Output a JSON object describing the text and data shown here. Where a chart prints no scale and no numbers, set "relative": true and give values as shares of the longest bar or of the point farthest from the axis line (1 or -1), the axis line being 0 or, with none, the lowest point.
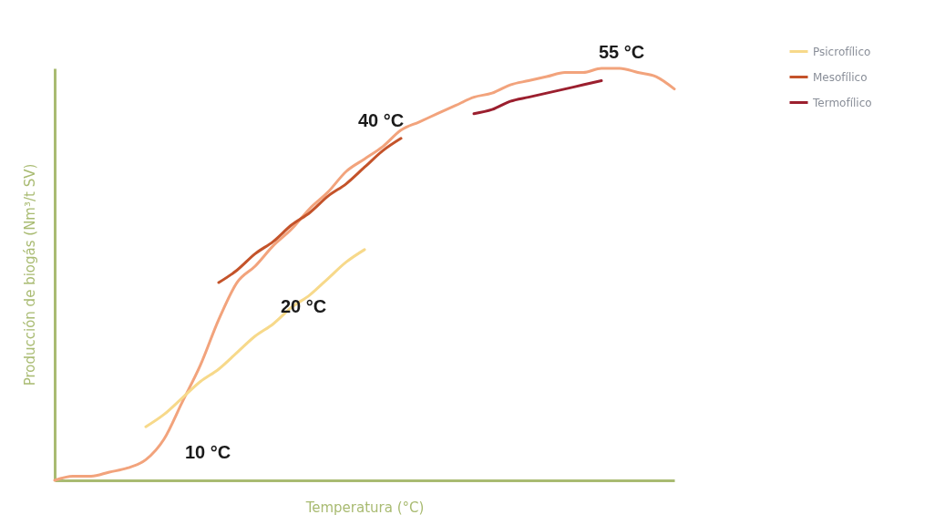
{
  "chart_data": {
    "type": "line",
    "relative": true,
    "xlabel": "Temperatura (°C)",
    "ylabel": "Producción de biogás (Nm³/t SV)",
    "categories": [
      null,
      null,
      null,
      null,
      null,
      null,
      null,
      null,
      null,
      null,
      null,
      null,
      null,
      null,
      null,
      null,
      null,
      null,
      null,
      null,
      null,
      null,
      null,
      null,
      null,
      null,
      null,
      null,
      null,
      null,
      null,
      null,
      null,
      null,
      null
    ],
    "series": [
      {
        "color": "#f2a37c",
        "values": [
          0,
          0.01,
          0.01,
          0.02,
          0.03,
          0.05,
          0.1,
          0.19,
          0.28,
          0.39,
          0.48,
          0.52,
          0.57,
          0.61,
          0.66,
          0.7,
          0.75,
          0.78,
          0.81,
          0.85,
          0.87,
          0.89,
          0.91,
          0.93,
          0.94,
          0.96,
          0.97,
          0.98,
          0.99,
          0.99,
          1.0,
          1.0,
          0.99,
          0.98,
          0.95
        ]
      },
      {
        "name": "Psicrofílico",
        "color": "#f7d98a",
        "values": [
          null,
          null,
          null,
          null,
          null,
          0.13,
          0.16,
          0.2,
          0.24,
          0.27,
          0.31,
          0.35,
          0.38,
          0.42,
          0.45,
          0.49,
          0.53,
          0.56,
          null,
          null,
          null,
          null,
          null,
          null,
          null,
          null,
          null,
          null,
          null,
          null,
          null,
          null,
          null,
          null,
          null
        ]
      },
      {
        "name": "Mesofílico",
        "color": "#c4532a",
        "values": [
          null,
          null,
          null,
          null,
          null,
          null,
          null,
          null,
          null,
          0.48,
          0.51,
          0.55,
          0.58,
          0.62,
          0.65,
          0.69,
          0.72,
          0.76,
          0.8,
          0.83,
          null,
          null,
          null,
          null,
          null,
          null,
          null,
          null,
          null,
          null,
          null,
          null,
          null,
          null,
          null
        ]
      },
      {
        "name": "Termofílico",
        "color": "#9b1f2e",
        "values": [
          null,
          null,
          null,
          null,
          null,
          null,
          null,
          null,
          null,
          null,
          null,
          null,
          null,
          null,
          null,
          null,
          null,
          null,
          null,
          null,
          null,
          null,
          null,
          0.89,
          0.9,
          0.92,
          0.93,
          0.94,
          0.95,
          0.96,
          0.97,
          null,
          null,
          null,
          null
        ]
      }
    ],
    "annotations": [
      "10 °C",
      "20 °C",
      "40 °C",
      "55 °C"
    ],
    "legend": "top right",
    "grid": false,
    "marker": "none",
    "line_style": "solid"
  }
}
